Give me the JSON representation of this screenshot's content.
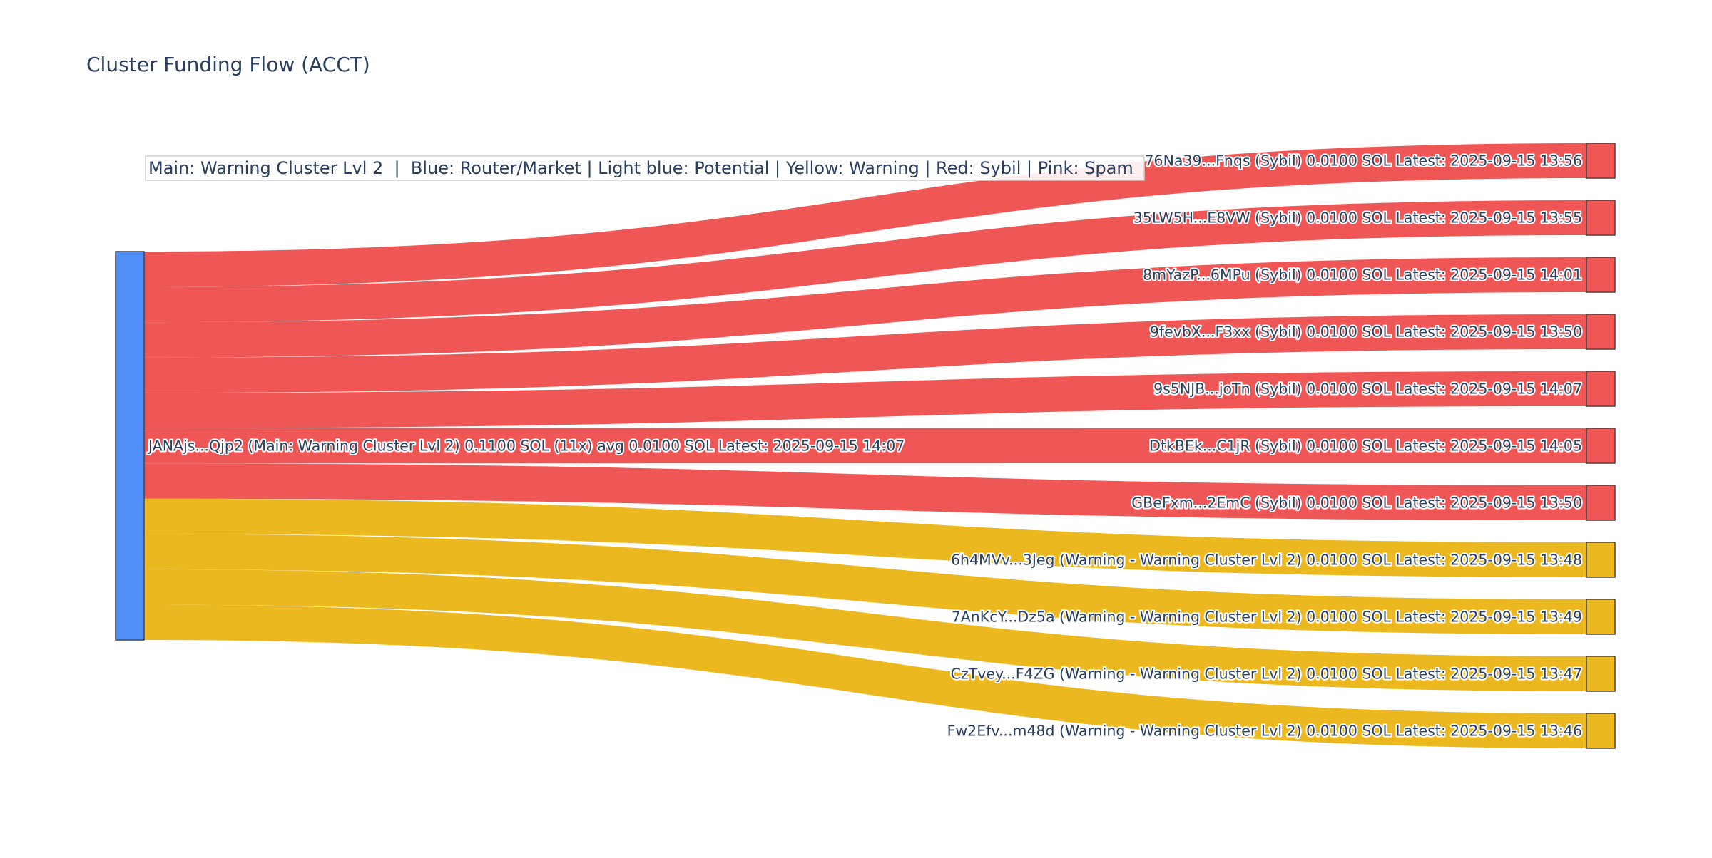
{
  "title": "Cluster Funding Flow (ACCT)",
  "legend": "Main: Warning Cluster Lvl 2  |  Blue: Router/Market | Light blue: Potential | Yellow: Warning | Red: Sybil | Pink: Spam",
  "colors": {
    "Main": "#4f8ff7",
    "Sybil": "#ef5757",
    "Warning": "#ebb820",
    "Router/Market": "#4f8ff7",
    "Potential": "#9cc8f5",
    "Spam": "#f4a6c6"
  },
  "source": {
    "label": "JANAjs...Qjp2 (Main: Warning Cluster Lvl 2) 0.1100 SOL (11x) avg 0.0100 SOL Latest: 2025-09-15 14:07",
    "category": "Main"
  },
  "targets": [
    {
      "label": "76Na39...Fnqs (Sybil) 0.0100 SOL Latest: 2025-09-15 13:56",
      "category": "Sybil",
      "value": 0.01
    },
    {
      "label": "35LW5H...E8VW (Sybil) 0.0100 SOL Latest: 2025-09-15 13:55",
      "category": "Sybil",
      "value": 0.01
    },
    {
      "label": "8mYazP...6MPu (Sybil) 0.0100 SOL Latest: 2025-09-15 14:01",
      "category": "Sybil",
      "value": 0.01
    },
    {
      "label": "9fevbX...F3xx (Sybil) 0.0100 SOL Latest: 2025-09-15 13:50",
      "category": "Sybil",
      "value": 0.01
    },
    {
      "label": "9s5NJB...joTn (Sybil) 0.0100 SOL Latest: 2025-09-15 14:07",
      "category": "Sybil",
      "value": 0.01
    },
    {
      "label": "DtkBEk...C1jR (Sybil) 0.0100 SOL Latest: 2025-09-15 14:05",
      "category": "Sybil",
      "value": 0.01
    },
    {
      "label": "GBeFxm...2EmC (Sybil) 0.0100 SOL Latest: 2025-09-15 13:50",
      "category": "Sybil",
      "value": 0.01
    },
    {
      "label": "6h4MVv...3Jeg (Warning - Warning Cluster Lvl 2) 0.0100 SOL Latest: 2025-09-15 13:48",
      "category": "Warning",
      "value": 0.01
    },
    {
      "label": "7AnKcY...Dz5a (Warning - Warning Cluster Lvl 2) 0.0100 SOL Latest: 2025-09-15 13:49",
      "category": "Warning",
      "value": 0.01
    },
    {
      "label": "CzTvey...F4ZG (Warning - Warning Cluster Lvl 2) 0.0100 SOL Latest: 2025-09-15 13:47",
      "category": "Warning",
      "value": 0.01
    },
    {
      "label": "Fw2Efv...m48d (Warning - Warning Cluster Lvl 2) 0.0100 SOL Latest: 2025-09-15 13:46",
      "category": "Warning",
      "value": 0.01
    }
  ]
}
